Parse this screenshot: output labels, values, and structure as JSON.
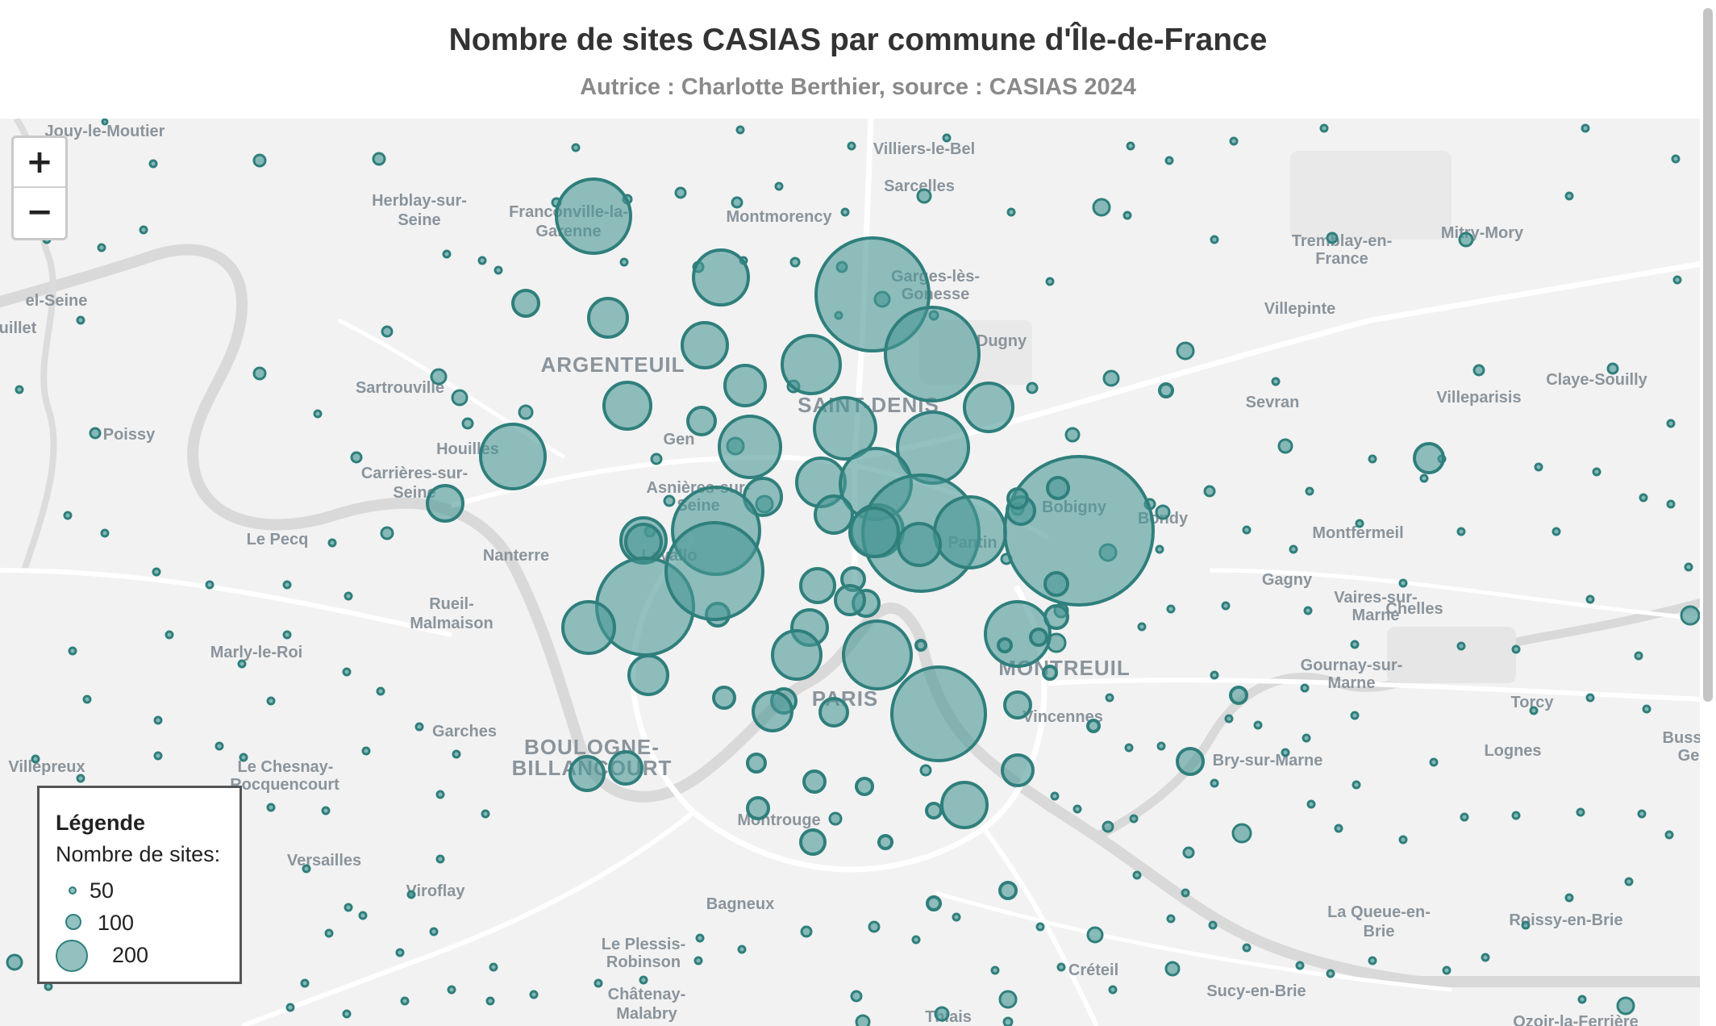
{
  "map": {
    "title": "Nombre de sites CASIAS par commune d'Île-de-France",
    "subtitle": "Autrice : Charlotte Berthier, source : CASIAS 2024",
    "colors": {
      "land": "#f2f2f2",
      "water": "#dcdcdc",
      "bubble_fill": "#4a9896",
      "bubble_stroke": "#2f7f7c",
      "label": "#8a949c"
    },
    "zoom_in_label": "+",
    "zoom_out_label": "−",
    "legend": {
      "title": "Légende",
      "subtitle": "Nombre de sites:",
      "items": [
        {
          "value": 50,
          "label": "50"
        },
        {
          "value": 100,
          "label": "100"
        },
        {
          "value": 200,
          "label": "200"
        }
      ]
    },
    "place_labels": [
      {
        "text": "Jouy-le-Moutier",
        "big": false
      },
      {
        "text": "Villiers-le-Bel",
        "big": false
      },
      {
        "text": "Sarcelles",
        "big": false
      },
      {
        "text": "Herblay-sur-",
        "big": false
      },
      {
        "text": "Seine",
        "big": false
      },
      {
        "text": "Franconville-la-",
        "big": false
      },
      {
        "text": "Garenne",
        "big": false
      },
      {
        "text": "Montmorency",
        "big": false
      },
      {
        "text": "Tremblay-en-",
        "big": false
      },
      {
        "text": "France",
        "big": false
      },
      {
        "text": "Mitry-Mory",
        "big": false
      },
      {
        "text": "Garges-lès-",
        "big": false
      },
      {
        "text": "Gonesse",
        "big": false
      },
      {
        "text": "Villepinte",
        "big": false
      },
      {
        "text": "Dugny",
        "big": false
      },
      {
        "text": "ARGENTEUIL",
        "big": true
      },
      {
        "text": "Sartrouville",
        "big": false
      },
      {
        "text": "SAINT-DENIS",
        "big": true
      },
      {
        "text": "Sevran",
        "big": false
      },
      {
        "text": "Villeparisis",
        "big": false
      },
      {
        "text": "Claye-Souilly",
        "big": false
      },
      {
        "text": "Poissy",
        "big": false
      },
      {
        "text": "Houilles",
        "big": false
      },
      {
        "text": "Gen",
        "big": false
      },
      {
        "text": "Carrières-sur-",
        "big": false
      },
      {
        "text": "Seine",
        "big": false
      },
      {
        "text": "Asnières-sur-",
        "big": false
      },
      {
        "text": "Seine",
        "big": false
      },
      {
        "text": "Bobigny",
        "big": false
      },
      {
        "text": "Bondy",
        "big": false
      },
      {
        "text": "Montfermeil",
        "big": false
      },
      {
        "text": "Le Pecq",
        "big": false
      },
      {
        "text": "Nanterre",
        "big": false
      },
      {
        "text": "Levallo",
        "big": false
      },
      {
        "text": "Pantin",
        "big": false
      },
      {
        "text": "Gagny",
        "big": false
      },
      {
        "text": "Chelles",
        "big": false
      },
      {
        "text": "Vaires-sur-",
        "big": false
      },
      {
        "text": "Marne",
        "big": false
      },
      {
        "text": "Rueil-",
        "big": false
      },
      {
        "text": "Malmaison",
        "big": false
      },
      {
        "text": "Marly-le-Roi",
        "big": false
      },
      {
        "text": "MONTREUIL",
        "big": true
      },
      {
        "text": "Gournay-sur-",
        "big": false
      },
      {
        "text": "Marne",
        "big": false
      },
      {
        "text": "Torcy",
        "big": false
      },
      {
        "text": "PARIS",
        "big": true
      },
      {
        "text": "Vincennes",
        "big": false
      },
      {
        "text": "Garches",
        "big": false
      },
      {
        "text": "BOULOGNE-",
        "big": true
      },
      {
        "text": "BILLANCOURT",
        "big": true
      },
      {
        "text": "Bry-sur-Marne",
        "big": false
      },
      {
        "text": "Lognes",
        "big": false
      },
      {
        "text": "Buss",
        "big": false
      },
      {
        "text": "Ge",
        "big": false
      },
      {
        "text": "Villepreux",
        "big": false
      },
      {
        "text": "Le Chesnay-",
        "big": false
      },
      {
        "text": "Rocquencourt",
        "big": false
      },
      {
        "text": "Montrouge",
        "big": false
      },
      {
        "text": "Versailles",
        "big": false
      },
      {
        "text": "Viroflay",
        "big": false
      },
      {
        "text": "Bagneux",
        "big": false
      },
      {
        "text": "La Queue-en-",
        "big": false
      },
      {
        "text": "Brie",
        "big": false
      },
      {
        "text": "Roissy-en-Brie",
        "big": false
      },
      {
        "text": "Le Plessis-",
        "big": false
      },
      {
        "text": "Robinson",
        "big": false
      },
      {
        "text": "Créteil",
        "big": false
      },
      {
        "text": "Sucy-en-Brie",
        "big": false
      },
      {
        "text": "Châtenay-",
        "big": false
      },
      {
        "text": "Malabry",
        "big": false
      },
      {
        "text": "Thiais",
        "big": false
      },
      {
        "text": "Ozoir-la-Ferrière",
        "big": false
      },
      {
        "text": "el-Seine",
        "big": false
      },
      {
        "text": "uillet",
        "big": false
      }
    ]
  }
}
